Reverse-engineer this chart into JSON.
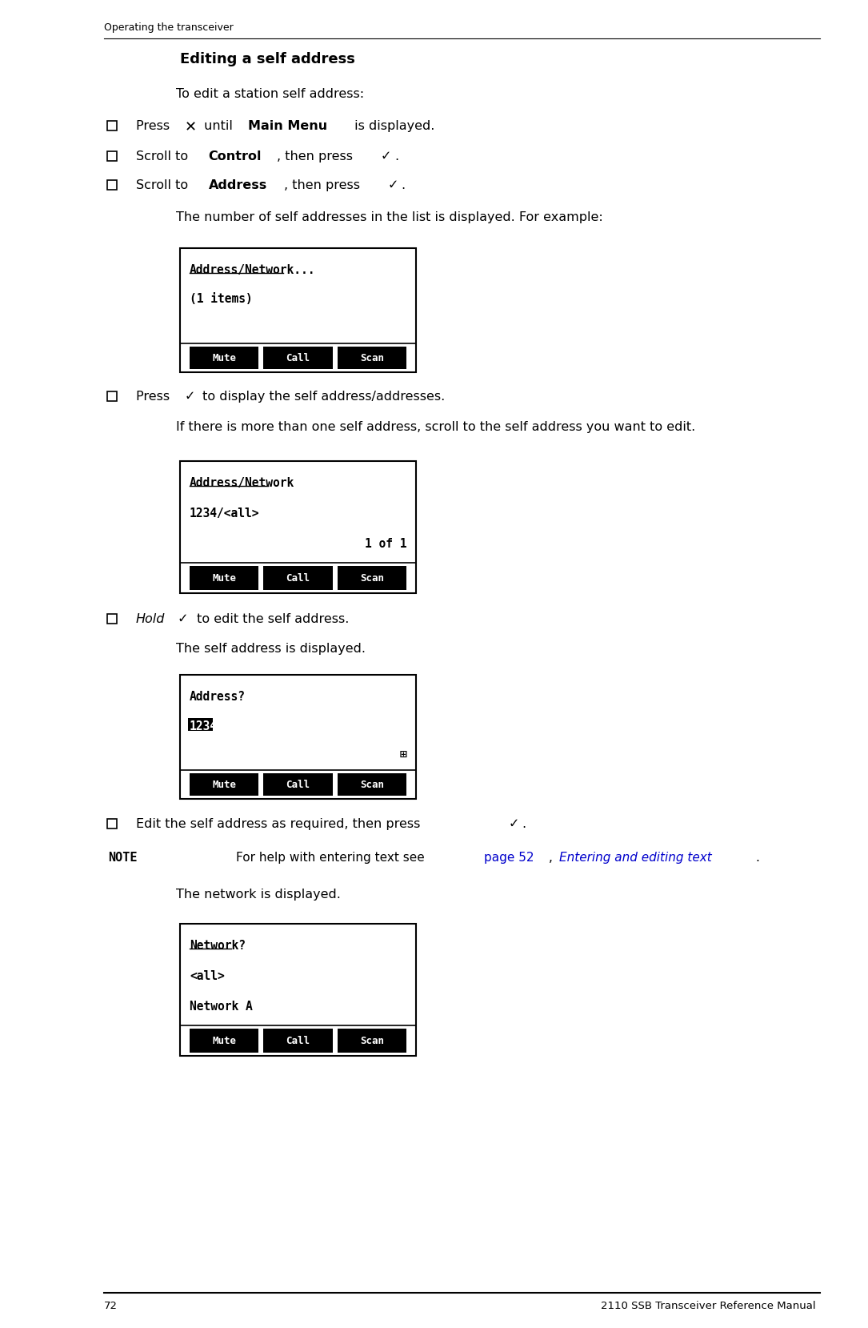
{
  "page_title_left": "Operating the transceiver",
  "page_number": "72",
  "page_footer_right": "2110 SSB Transceiver Reference Manual",
  "section_title": "Editing a self address",
  "intro_text": "To edit a station self address:",
  "screen1": {
    "line1": "Address/Network...",
    "line1_underline": true,
    "line2": "(1 items)",
    "line3": "",
    "softkeys": [
      "Mute",
      "Call",
      "Scan"
    ]
  },
  "screen2": {
    "line1": "Address/Network",
    "line1_underline": true,
    "line2": "1234/<all>",
    "line3": "1 of 1",
    "line3_right": true,
    "softkeys": [
      "Mute",
      "Call",
      "Scan"
    ]
  },
  "screen3": {
    "line1": "Address?",
    "line1_underline": false,
    "line2_highlight_text": "1234",
    "line3": "⊞",
    "line3_right": true,
    "softkeys": [
      "Mute",
      "Call",
      "Scan"
    ]
  },
  "screen4": {
    "line1": "Network?",
    "line1_underline": true,
    "line2": "<all>",
    "line3": "Network A",
    "softkeys": [
      "Mute",
      "Call",
      "Scan"
    ]
  },
  "bg_color": "#FFFFFF",
  "text_color": "#000000"
}
